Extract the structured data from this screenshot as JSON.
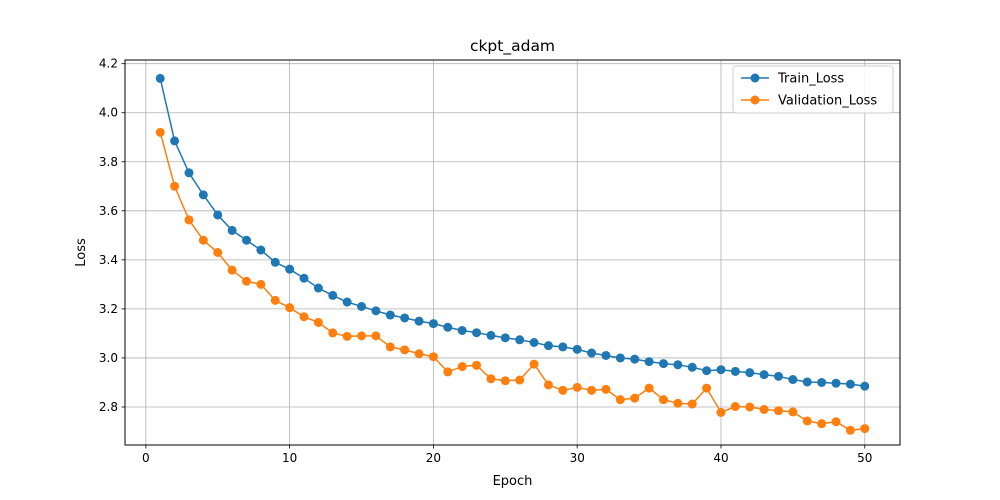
{
  "chart_data": {
    "type": "line",
    "title": "ckpt_adam",
    "xlabel": "Epoch",
    "ylabel": "Loss",
    "xlim": [
      -1.45,
      52.45
    ],
    "ylim": [
      2.645,
      4.215
    ],
    "xticks": [
      0,
      10,
      20,
      30,
      40,
      50
    ],
    "yticks": [
      2.8,
      3.0,
      3.2,
      3.4,
      3.6,
      3.8,
      4.0,
      4.2
    ],
    "ytick_labels": [
      "2.8",
      "3.0",
      "3.2",
      "3.4",
      "3.6",
      "3.8",
      "4.0",
      "4.2"
    ],
    "grid": true,
    "legend_position": "top-right",
    "x": [
      1,
      2,
      3,
      4,
      5,
      6,
      7,
      8,
      9,
      10,
      11,
      12,
      13,
      14,
      15,
      16,
      17,
      18,
      19,
      20,
      21,
      22,
      23,
      24,
      25,
      26,
      27,
      28,
      29,
      30,
      31,
      32,
      33,
      34,
      35,
      36,
      37,
      38,
      39,
      40,
      41,
      42,
      43,
      44,
      45,
      46,
      47,
      48,
      49,
      50
    ],
    "series": [
      {
        "name": "Train_Loss",
        "color": "#1f77b4",
        "values": [
          4.14,
          3.885,
          3.755,
          3.665,
          3.583,
          3.52,
          3.48,
          3.44,
          3.39,
          3.362,
          3.325,
          3.285,
          3.255,
          3.228,
          3.21,
          3.192,
          3.175,
          3.163,
          3.15,
          3.14,
          3.125,
          3.112,
          3.103,
          3.092,
          3.082,
          3.074,
          3.063,
          3.05,
          3.045,
          3.035,
          3.02,
          3.01,
          3.0,
          2.995,
          2.985,
          2.977,
          2.972,
          2.962,
          2.948,
          2.952,
          2.945,
          2.94,
          2.932,
          2.925,
          2.912,
          2.902,
          2.9,
          2.897,
          2.893,
          2.885
        ]
      },
      {
        "name": "Validation_Loss",
        "color": "#ff7f0e",
        "values": [
          3.92,
          3.7,
          3.563,
          3.48,
          3.43,
          3.358,
          3.313,
          3.3,
          3.235,
          3.205,
          3.168,
          3.145,
          3.102,
          3.088,
          3.09,
          3.09,
          3.045,
          3.033,
          3.017,
          3.005,
          2.943,
          2.965,
          2.97,
          2.915,
          2.907,
          2.91,
          2.975,
          2.89,
          2.868,
          2.88,
          2.868,
          2.872,
          2.83,
          2.836,
          2.877,
          2.83,
          2.815,
          2.812,
          2.877,
          2.778,
          2.802,
          2.8,
          2.79,
          2.785,
          2.78,
          2.743,
          2.732,
          2.74,
          2.705,
          2.712
        ]
      }
    ]
  }
}
